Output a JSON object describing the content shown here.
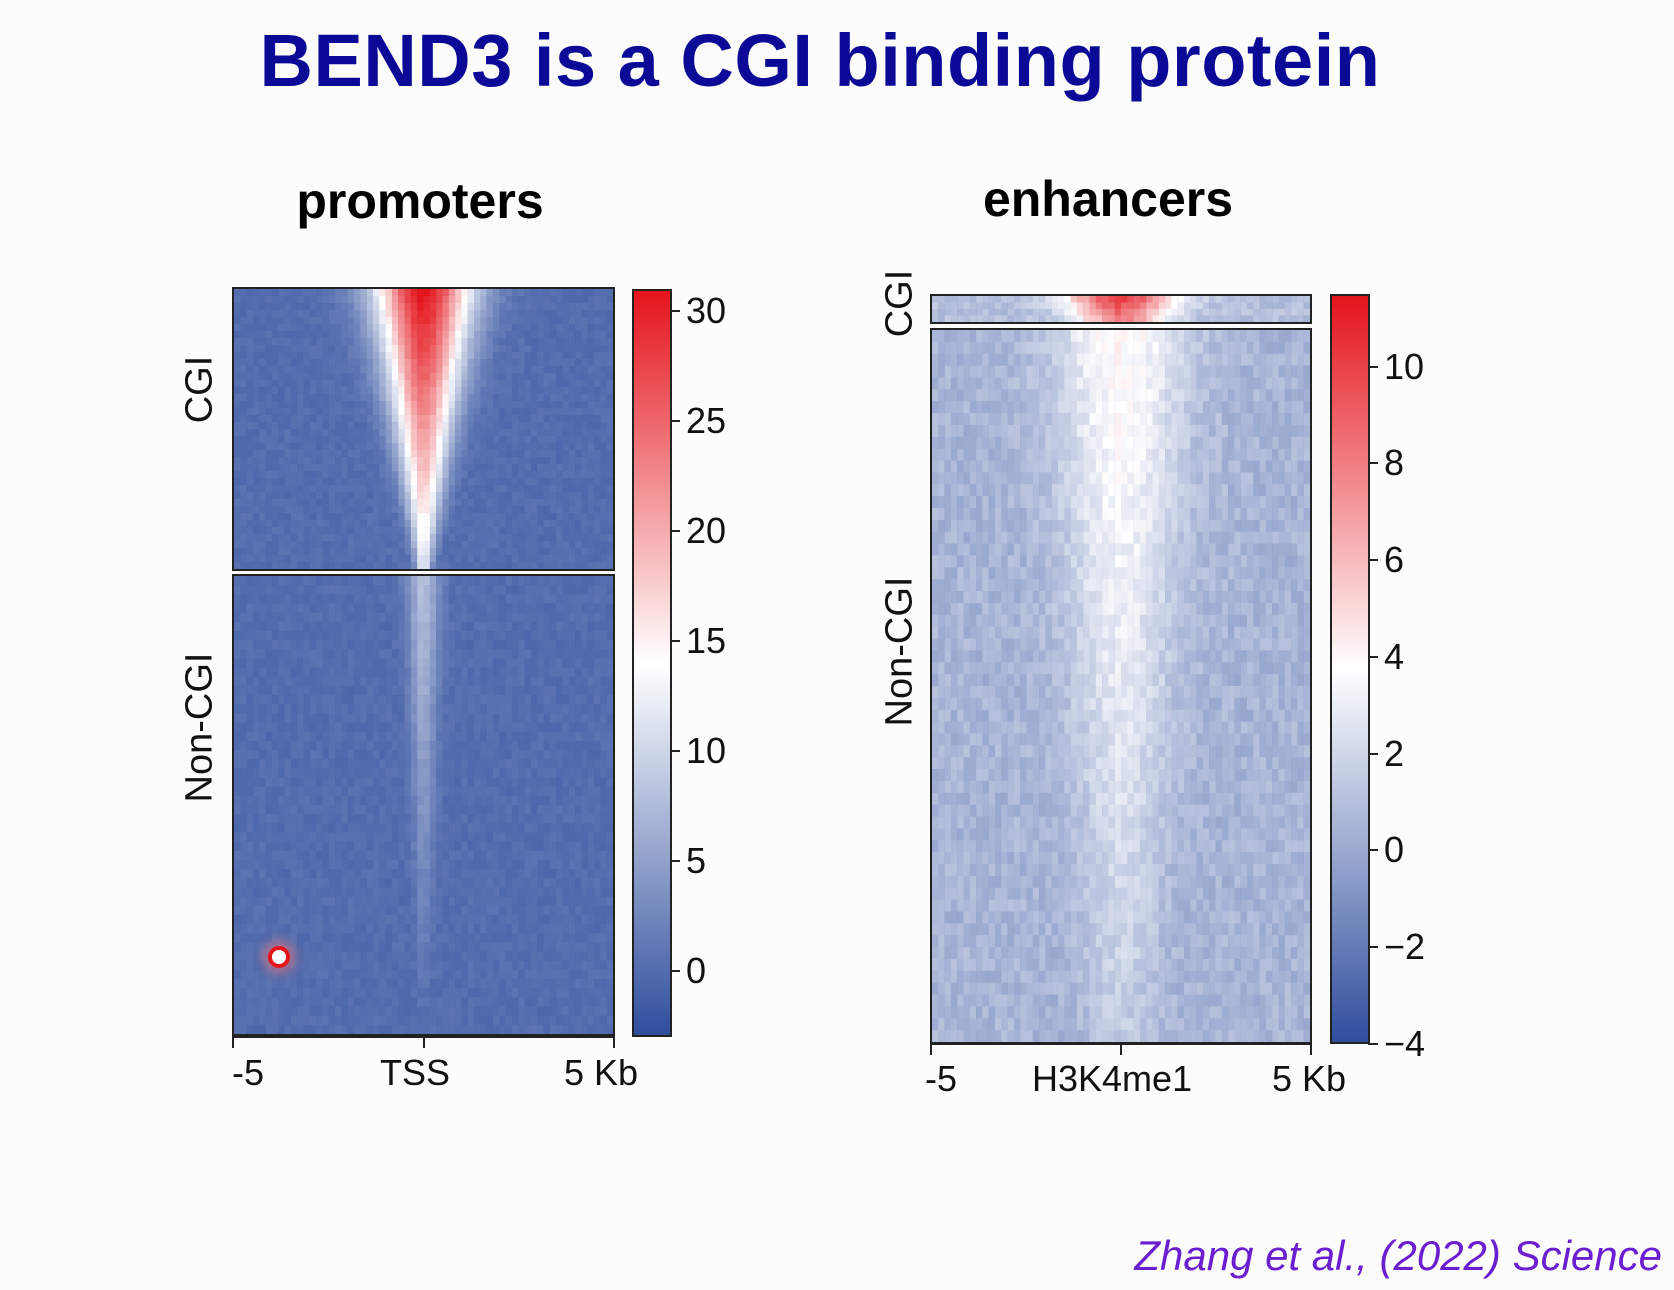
{
  "slide": {
    "title": "BEND3 is a CGI binding protein",
    "citation": "Zhang et al., (2022) Science"
  },
  "colors": {
    "title": "#0a0a96",
    "low": "#2f4e9d",
    "mid": "#ffffff",
    "high": "#e4141b",
    "citation": "#6a1ecf"
  },
  "chart_data": [
    {
      "type": "heatmap",
      "title": "promoters",
      "row_groups": [
        "CGI",
        "Non-CGI"
      ],
      "x_ticks": [
        "-5",
        "TSS",
        "5 Kb"
      ],
      "xlim_kb": [
        -5,
        5
      ],
      "colorbar": {
        "ticks": [
          "30",
          "25",
          "20",
          "15",
          "10",
          "5",
          "0"
        ],
        "range": [
          -3,
          31
        ]
      },
      "profiles": [
        {
          "group": "CGI",
          "peak_top": 31,
          "peak_bottom": 12,
          "baseline": 0,
          "halfwidth_top_kb": 0.9,
          "halfwidth_bottom_kb": 0.15
        },
        {
          "group": "Non-CGI",
          "peak_top": 8,
          "peak_bottom": 0,
          "baseline": 0,
          "halfwidth_top_kb": 0.3,
          "halfwidth_bottom_kb": 0.1
        }
      ]
    },
    {
      "type": "heatmap",
      "title": "enhancers",
      "row_groups": [
        "CGI",
        "Non-CGI"
      ],
      "x_ticks": [
        "-5",
        "H3K4me1",
        "5 Kb"
      ],
      "xlim_kb": [
        -5,
        5
      ],
      "colorbar": {
        "ticks": [
          "10",
          "8",
          "6",
          "4",
          "2",
          "0",
          "−2",
          "−4"
        ],
        "range": [
          -4,
          11.5
        ]
      },
      "profiles": [
        {
          "group": "CGI",
          "peak_top": 10,
          "peak_bottom": 8,
          "baseline": 1,
          "halfwidth_top_kb": 1.0,
          "halfwidth_bottom_kb": 0.8
        },
        {
          "group": "Non-CGI",
          "peak_top": 4,
          "peak_bottom": 1.5,
          "baseline": 0.5,
          "halfwidth_top_kb": 1.2,
          "halfwidth_bottom_kb": 0.6
        }
      ]
    }
  ]
}
